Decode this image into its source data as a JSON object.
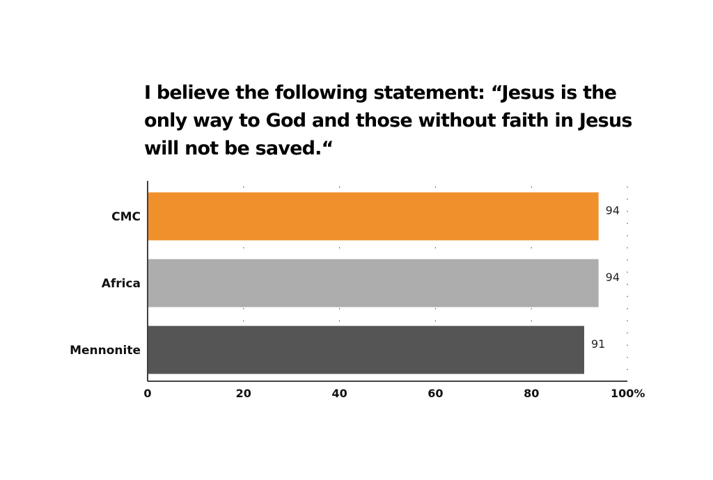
{
  "chart_data": {
    "type": "bar",
    "orientation": "horizontal",
    "title": "I believe the following statement: “Jesus is the only way to God and those without faith in Jesus will not be saved.“",
    "categories": [
      "CMC",
      "Africa",
      "Mennonite"
    ],
    "values": [
      94,
      94,
      91
    ],
    "data_labels": [
      "94",
      "94",
      "91"
    ],
    "bar_colors": [
      "#f0902c",
      "#adadad",
      "#555555"
    ],
    "xlim": [
      0,
      100
    ],
    "x_ticks": [
      0,
      20,
      40,
      60,
      80,
      100
    ],
    "x_tick_labels": [
      "0",
      "20",
      "40",
      "60",
      "80",
      "100%"
    ],
    "xlabel": "",
    "ylabel": "",
    "grid": "vertical dotted",
    "legend": "none"
  }
}
